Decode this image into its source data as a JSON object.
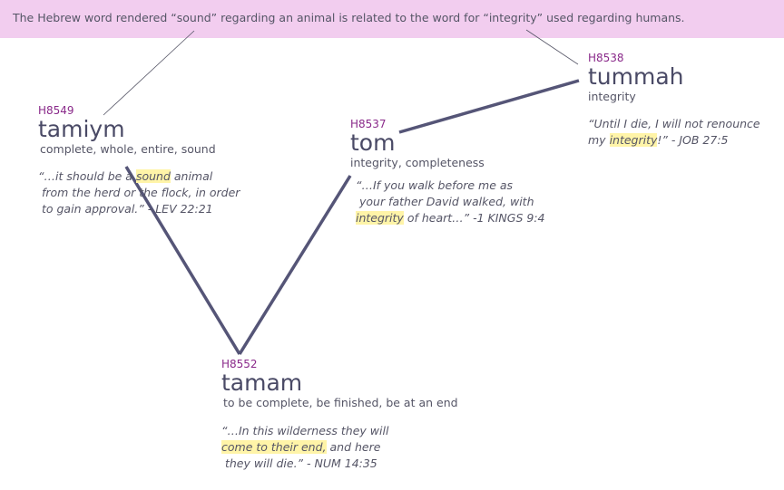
{
  "banner": {
    "text": "The Hebrew word rendered “sound” regarding an animal is related to the word for “integrity” used regarding humans."
  },
  "colors": {
    "banner_bg": "#f2cdef",
    "code_color": "#8a2a8a",
    "word_color": "#4a4a66",
    "link_color": "#555577",
    "highlight": "#fff4a8"
  },
  "nodes": {
    "tamiym": {
      "code": "H8549",
      "word": "tamiym",
      "gloss": "complete, whole, entire, sound",
      "quote_l1_a": "“…it should be a ",
      "quote_l1_hl": "sound",
      "quote_l1_b": " animal",
      "quote_l2": " from the herd or the flock, in order",
      "quote_l3": " to gain approval.” - LEV 22:21"
    },
    "tom": {
      "code": "H8537",
      "word": "tom",
      "gloss": "integrity, completeness",
      "quote_l1": "“…If you walk before me as",
      "quote_l2": " your father David walked, with",
      "quote_l3_hl": "integrity",
      "quote_l3_b": " of heart…” -1 KINGS 9:4"
    },
    "tummah": {
      "code": "H8538",
      "word": "tummah",
      "gloss": "integrity",
      "quote_l1": "“Until I die, I will not renounce",
      "quote_l2_a": "my ",
      "quote_l2_hl": "integrity",
      "quote_l2_b": "!” - JOB 27:5"
    },
    "tamam": {
      "code": "H8552",
      "word": "tamam",
      "gloss": "to be complete, be finished, be at an end",
      "quote_l1": "“…In this wilderness they will",
      "quote_l2_hl": "come to their end,",
      "quote_l2_b": " and here",
      "quote_l3": " they will die.” - NUM 14:35"
    }
  }
}
